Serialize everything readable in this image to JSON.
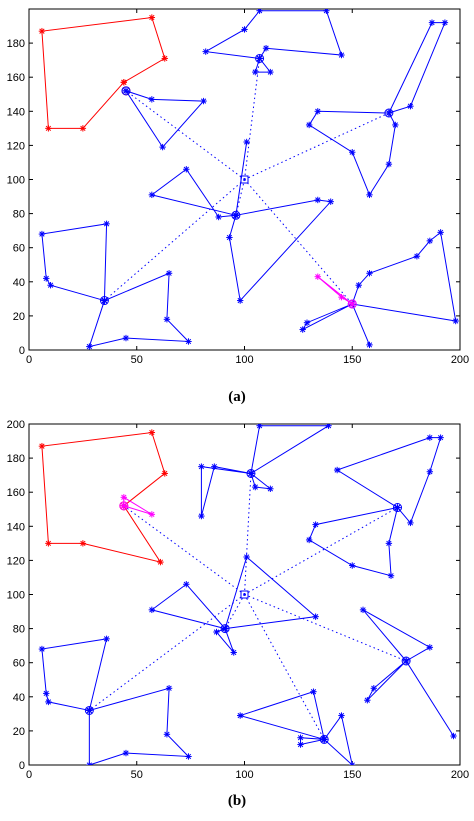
{
  "panels": [
    {
      "caption": "(a)",
      "chart_data": {
        "type": "scatter",
        "title": "",
        "xlabel": "",
        "ylabel": "",
        "xlim": [
          0,
          200
        ],
        "ylim": [
          0,
          200
        ],
        "xticks": [
          "0",
          "50",
          "100",
          "150",
          "200"
        ],
        "yticks": [
          "0",
          "20",
          "40",
          "60",
          "80",
          "100",
          "120",
          "140",
          "160",
          "180"
        ],
        "depot": [
          100,
          100
        ],
        "hubs": [
          {
            "color": "#ff0000",
            "center": [
              45,
              152
            ],
            "points": [
              [
                44,
                157
              ],
              [
                63,
                171
              ],
              [
                57,
                195
              ],
              [
                6,
                187
              ],
              [
                9,
                130
              ],
              [
                25,
                130
              ],
              [
                44,
                157
              ]
            ]
          },
          {
            "color": "#0000ff",
            "center": [
              45,
              152
            ],
            "points": [
              [
                45,
                152
              ],
              [
                57,
                147
              ],
              [
                81,
                146
              ],
              [
                62,
                119
              ],
              [
                45,
                152
              ]
            ]
          },
          {
            "color": "#0000ff",
            "center": [
              107,
              171
            ],
            "points": [
              [
                107,
                171
              ],
              [
                82,
                175
              ],
              [
                100,
                188
              ],
              [
                107,
                199
              ],
              [
                138,
                199
              ],
              [
                145,
                173
              ],
              [
                110,
                177
              ],
              [
                107,
                171
              ],
              [
                105,
                163
              ],
              [
                112,
                163
              ],
              [
                107,
                171
              ]
            ]
          },
          {
            "color": "#0000ff",
            "center": [
              167,
              139
            ],
            "points": [
              [
                167,
                139
              ],
              [
                187,
                192
              ],
              [
                193,
                192
              ],
              [
                177,
                143
              ],
              [
                167,
                139
              ],
              [
                134,
                140
              ],
              [
                130,
                132
              ],
              [
                150,
                116
              ],
              [
                158,
                91
              ],
              [
                167,
                109
              ],
              [
                170,
                132
              ],
              [
                167,
                139
              ]
            ]
          },
          {
            "color": "#0000ff",
            "center": [
              96,
              79
            ],
            "points": [
              [
                96,
                79
              ],
              [
                88,
                78
              ],
              [
                73,
                106
              ],
              [
                57,
                91
              ],
              [
                96,
                79
              ],
              [
                101,
                122
              ],
              [
                96,
                79
              ],
              [
                134,
                88
              ],
              [
                140,
                87
              ],
              [
                98,
                29
              ],
              [
                93,
                66
              ],
              [
                96,
                79
              ]
            ]
          },
          {
            "color": "#0000ff",
            "center": [
              35,
              29
            ],
            "points": [
              [
                35,
                29
              ],
              [
                10,
                38
              ],
              [
                8,
                42
              ],
              [
                6,
                68
              ],
              [
                36,
                74
              ],
              [
                35,
                29
              ],
              [
                65,
                45
              ],
              [
                64,
                18
              ],
              [
                74,
                5
              ],
              [
                45,
                7
              ],
              [
                28,
                2
              ],
              [
                35,
                29
              ]
            ]
          },
          {
            "color": "#0000ff",
            "center": [
              150,
              27
            ],
            "points": [
              [
                150,
                27
              ],
              [
                153,
                38
              ],
              [
                158,
                45
              ],
              [
                180,
                55
              ],
              [
                186,
                64
              ],
              [
                191,
                69
              ],
              [
                198,
                17
              ],
              [
                150,
                27
              ],
              [
                127,
                12
              ],
              [
                129,
                16
              ],
              [
                150,
                27
              ],
              [
                158,
                3
              ],
              [
                150,
                27
              ]
            ]
          },
          {
            "color": "#ff00ff",
            "center": [
              150,
              27
            ],
            "points": [
              [
                150,
                27
              ],
              [
                134,
                43
              ],
              [
                145,
                31
              ],
              [
                150,
                27
              ]
            ]
          }
        ],
        "links": [
          [
            [
              100,
              100
            ],
            [
              45,
              152
            ]
          ],
          [
            [
              100,
              100
            ],
            [
              107,
              171
            ]
          ],
          [
            [
              100,
              100
            ],
            [
              167,
              139
            ]
          ],
          [
            [
              100,
              100
            ],
            [
              96,
              79
            ]
          ],
          [
            [
              100,
              100
            ],
            [
              35,
              29
            ]
          ],
          [
            [
              100,
              100
            ],
            [
              150,
              27
            ]
          ]
        ]
      }
    },
    {
      "caption": "(b)",
      "chart_data": {
        "type": "scatter",
        "title": "",
        "xlabel": "",
        "ylabel": "",
        "xlim": [
          0,
          200
        ],
        "ylim": [
          0,
          200
        ],
        "xticks": [
          "0",
          "50",
          "100",
          "150",
          "200"
        ],
        "yticks": [
          "0",
          "20",
          "40",
          "60",
          "80",
          "100",
          "120",
          "140",
          "160",
          "180",
          "200"
        ],
        "depot": [
          100,
          100
        ],
        "hubs": [
          {
            "color": "#ff0000",
            "center": [
              44,
              152
            ],
            "points": [
              [
                44,
                152
              ],
              [
                63,
                171
              ],
              [
                57,
                195
              ],
              [
                6,
                187
              ],
              [
                9,
                130
              ],
              [
                25,
                130
              ],
              [
                61,
                119
              ],
              [
                44,
                152
              ]
            ]
          },
          {
            "color": "#ff00ff",
            "center": [
              44,
              152
            ],
            "points": [
              [
                44,
                152
              ],
              [
                44,
                157
              ],
              [
                57,
                147
              ],
              [
                44,
                152
              ]
            ]
          },
          {
            "color": "#0000ff",
            "center": [
              103,
              171
            ],
            "points": [
              [
                103,
                171
              ],
              [
                80,
                175
              ],
              [
                80,
                146
              ],
              [
                86,
                175
              ],
              [
                103,
                171
              ],
              [
                107,
                199
              ],
              [
                139,
                199
              ],
              [
                103,
                171
              ],
              [
                105,
                163
              ],
              [
                112,
                162
              ],
              [
                103,
                171
              ]
            ]
          },
          {
            "color": "#0000ff",
            "center": [
              171,
              151
            ],
            "points": [
              [
                171,
                151
              ],
              [
                143,
                173
              ],
              [
                186,
                192
              ],
              [
                191,
                192
              ],
              [
                186,
                172
              ],
              [
                177,
                142
              ],
              [
                171,
                151
              ],
              [
                133,
                141
              ],
              [
                130,
                132
              ],
              [
                150,
                117
              ],
              [
                168,
                111
              ],
              [
                167,
                130
              ],
              [
                171,
                151
              ]
            ]
          },
          {
            "color": "#0000ff",
            "center": [
              91,
              80
            ],
            "points": [
              [
                91,
                80
              ],
              [
                57,
                91
              ],
              [
                73,
                106
              ],
              [
                91,
                80
              ],
              [
                101,
                122
              ],
              [
                133,
                87
              ],
              [
                91,
                80
              ],
              [
                87,
                78
              ],
              [
                95,
                66
              ],
              [
                91,
                80
              ]
            ]
          },
          {
            "color": "#0000ff",
            "center": [
              28,
              32
            ],
            "points": [
              [
                28,
                32
              ],
              [
                9,
                37
              ],
              [
                8,
                42
              ],
              [
                6,
                68
              ],
              [
                36,
                74
              ],
              [
                28,
                32
              ],
              [
                65,
                45
              ],
              [
                64,
                18
              ],
              [
                74,
                5
              ],
              [
                45,
                7
              ],
              [
                28,
                0
              ],
              [
                28,
                32
              ]
            ]
          },
          {
            "color": "#0000ff",
            "center": [
              137,
              15
            ],
            "points": [
              [
                137,
                15
              ],
              [
                98,
                29
              ],
              [
                132,
                43
              ],
              [
                137,
                15
              ],
              [
                145,
                29
              ],
              [
                150,
                0
              ],
              [
                137,
                15
              ],
              [
                126,
                12
              ],
              [
                126,
                16
              ],
              [
                137,
                15
              ]
            ]
          },
          {
            "color": "#0000ff",
            "center": [
              175,
              61
            ],
            "points": [
              [
                175,
                61
              ],
              [
                155,
                91
              ],
              [
                186,
                69
              ],
              [
                175,
                61
              ],
              [
                197,
                17
              ],
              [
                175,
                61
              ],
              [
                157,
                38
              ],
              [
                160,
                45
              ],
              [
                175,
                61
              ]
            ]
          }
        ],
        "links": [
          [
            [
              100,
              100
            ],
            [
              44,
              152
            ]
          ],
          [
            [
              100,
              100
            ],
            [
              103,
              171
            ]
          ],
          [
            [
              100,
              100
            ],
            [
              171,
              151
            ]
          ],
          [
            [
              100,
              100
            ],
            [
              91,
              80
            ]
          ],
          [
            [
              100,
              100
            ],
            [
              28,
              32
            ]
          ],
          [
            [
              100,
              100
            ],
            [
              137,
              15
            ]
          ],
          [
            [
              100,
              100
            ],
            [
              175,
              61
            ]
          ]
        ]
      }
    }
  ]
}
